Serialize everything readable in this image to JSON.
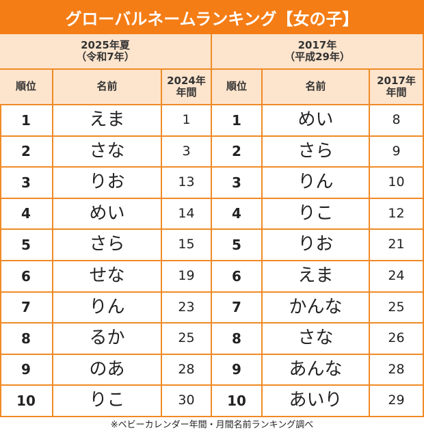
{
  "title": "グローバルネームランキング【女の子】",
  "tables": [
    {
      "group_header": [
        "2025年夏",
        "（令和7年）"
      ],
      "columns": [
        "順位",
        "名前",
        [
          "2024年",
          "年間"
        ]
      ],
      "rows": [
        [
          1,
          "えま",
          1
        ],
        [
          2,
          "さな",
          3
        ],
        [
          3,
          "りお",
          13
        ],
        [
          4,
          "めい",
          14
        ],
        [
          5,
          "さら",
          15
        ],
        [
          6,
          "せな",
          19
        ],
        [
          7,
          "りん",
          23
        ],
        [
          8,
          "るか",
          25
        ],
        [
          9,
          "のあ",
          28
        ],
        [
          10,
          "りこ",
          30
        ]
      ]
    },
    {
      "group_header": [
        "2017年",
        "（平成29年）"
      ],
      "columns": [
        "順位",
        "名前",
        [
          "2017年",
          "年間"
        ]
      ],
      "rows": [
        [
          1,
          "めい",
          8
        ],
        [
          2,
          "さら",
          9
        ],
        [
          3,
          "りん",
          10
        ],
        [
          4,
          "りこ",
          12
        ],
        [
          5,
          "りお",
          21
        ],
        [
          6,
          "えま",
          24
        ],
        [
          7,
          "かんな",
          25
        ],
        [
          8,
          "さな",
          26
        ],
        [
          9,
          "あんな",
          28
        ],
        [
          10,
          "あいり",
          29
        ]
      ]
    }
  ],
  "footnote": "※ベビーカレンダー年間・月間名前ランキング調べ"
}
